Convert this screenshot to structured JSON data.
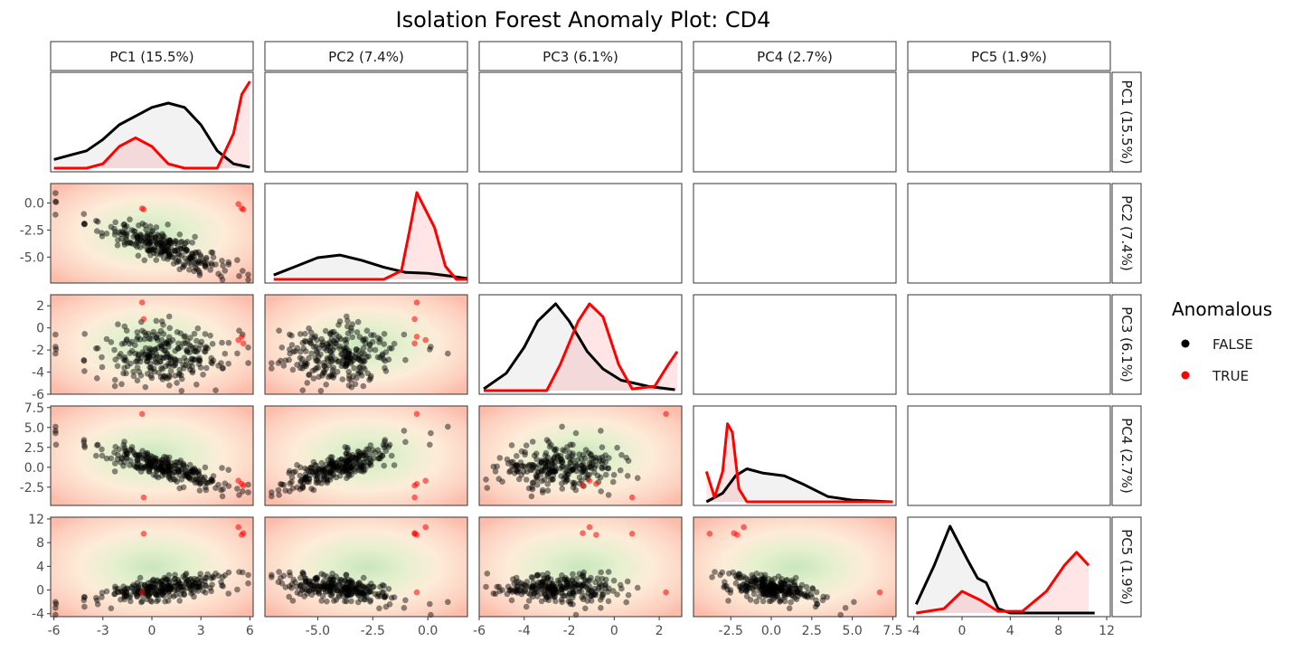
{
  "chart_data": {
    "type": "scatter",
    "title": "Isolation Forest Anomaly Plot: CD4",
    "variables": [
      "PC1 (15.5%)",
      "PC2 (7.4%)",
      "PC3 (6.1%)",
      "PC4 (2.7%)",
      "PC5 (1.9%)"
    ],
    "ranges": [
      [
        -6.2,
        6.2
      ],
      [
        -7.4,
        1.8
      ],
      [
        -6,
        3
      ],
      [
        -4.8,
        7.7
      ],
      [
        -4.5,
        12.3
      ]
    ],
    "ticks": [
      {
        "values": [
          -6,
          -3,
          0,
          3,
          6
        ],
        "labels": [
          "-6",
          "-3",
          "0",
          "3",
          "6"
        ]
      },
      {
        "values": [
          -5,
          -2.5,
          0
        ],
        "labels": [
          "-5.0",
          "-2.5",
          "0.0"
        ]
      },
      {
        "values": [
          -6,
          -4,
          -2,
          0,
          2
        ],
        "labels": [
          "-6",
          "-4",
          "-2",
          "0",
          "2"
        ]
      },
      {
        "values": [
          -2.5,
          0,
          2.5,
          5,
          7.5
        ],
        "labels": [
          "-2.5",
          "0.0",
          "2.5",
          "5.0",
          "7.5"
        ]
      },
      {
        "values": [
          -4,
          0,
          4,
          8,
          12
        ],
        "labels": [
          "-4",
          "0",
          "4",
          "8",
          "12"
        ]
      }
    ],
    "legend": {
      "title": "Anomalous",
      "position": "right",
      "entries": [
        {
          "label": "FALSE",
          "color": "#000000"
        },
        {
          "label": "TRUE",
          "color": "#ff0000"
        }
      ]
    },
    "anomaly_points": [
      [
        5.3,
        -0.1,
        -1.1,
        -1.7,
        10.6
      ],
      [
        5.5,
        -0.5,
        -0.8,
        -2.1,
        9.3
      ],
      [
        5.6,
        -0.6,
        -1.4,
        -2.3,
        9.6
      ],
      [
        -0.5,
        -0.6,
        0.8,
        -3.8,
        9.5
      ],
      [
        -0.6,
        -0.5,
        2.3,
        6.7,
        -0.4
      ]
    ],
    "density_curves": [
      {
        "false": [
          [
            -6,
            0.1
          ],
          [
            -5,
            0.15
          ],
          [
            -4,
            0.2
          ],
          [
            -3,
            0.33
          ],
          [
            -2,
            0.5
          ],
          [
            -1,
            0.6
          ],
          [
            0,
            0.7
          ],
          [
            1,
            0.75
          ],
          [
            2,
            0.7
          ],
          [
            3,
            0.5
          ],
          [
            4,
            0.2
          ],
          [
            5,
            0.05
          ],
          [
            6,
            0.01
          ]
        ],
        "true": [
          [
            -6,
            0.0
          ],
          [
            -4,
            0.0
          ],
          [
            -3,
            0.05
          ],
          [
            -2,
            0.25
          ],
          [
            -1,
            0.35
          ],
          [
            0,
            0.25
          ],
          [
            1,
            0.05
          ],
          [
            2,
            0.0
          ],
          [
            4,
            0.0
          ],
          [
            5,
            0.4
          ],
          [
            5.5,
            0.85
          ],
          [
            6,
            1.0
          ]
        ]
      },
      {
        "false": [
          [
            -7,
            0.05
          ],
          [
            -6,
            0.15
          ],
          [
            -5,
            0.25
          ],
          [
            -4,
            0.28
          ],
          [
            -3,
            0.22
          ],
          [
            -2,
            0.14
          ],
          [
            -1,
            0.08
          ],
          [
            0,
            0.07
          ],
          [
            1,
            0.04
          ],
          [
            1.8,
            0.01
          ]
        ],
        "true": [
          [
            -7,
            0.0
          ],
          [
            -2,
            0.0
          ],
          [
            -1.2,
            0.1
          ],
          [
            -0.8,
            0.6
          ],
          [
            -0.5,
            1.0
          ],
          [
            -0.2,
            0.85
          ],
          [
            0.3,
            0.6
          ],
          [
            0.8,
            0.15
          ],
          [
            1.3,
            0.0
          ],
          [
            1.8,
            0.0
          ]
        ]
      },
      {
        "false": [
          [
            -5.8,
            0.02
          ],
          [
            -4.8,
            0.2
          ],
          [
            -4,
            0.5
          ],
          [
            -3.4,
            0.8
          ],
          [
            -2.6,
            1.0
          ],
          [
            -2,
            0.8
          ],
          [
            -1.2,
            0.45
          ],
          [
            -0.5,
            0.25
          ],
          [
            0.3,
            0.12
          ],
          [
            1.5,
            0.05
          ],
          [
            2.7,
            0.01
          ]
        ],
        "true": [
          [
            -5.8,
            0.0
          ],
          [
            -3,
            0.0
          ],
          [
            -2.4,
            0.3
          ],
          [
            -1.6,
            0.8
          ],
          [
            -1.1,
            1.0
          ],
          [
            -0.5,
            0.85
          ],
          [
            0.2,
            0.3
          ],
          [
            0.8,
            0.02
          ],
          [
            1.8,
            0.05
          ],
          [
            2.4,
            0.3
          ],
          [
            2.8,
            0.45
          ]
        ]
      },
      {
        "false": [
          [
            -4,
            0.0
          ],
          [
            -3,
            0.1
          ],
          [
            -2.2,
            0.3
          ],
          [
            -1.5,
            0.38
          ],
          [
            -0.5,
            0.33
          ],
          [
            0.8,
            0.3
          ],
          [
            2,
            0.2
          ],
          [
            3.5,
            0.06
          ],
          [
            5,
            0.02
          ],
          [
            7.5,
            0.0
          ]
        ],
        "true": [
          [
            -4,
            0.35
          ],
          [
            -3.5,
            0.05
          ],
          [
            -3,
            0.35
          ],
          [
            -2.7,
            0.9
          ],
          [
            -2.4,
            0.8
          ],
          [
            -2,
            0.15
          ],
          [
            -1.5,
            0.0
          ],
          [
            7.5,
            0.0
          ]
        ]
      },
      {
        "false": [
          [
            -3.8,
            0.1
          ],
          [
            -2.3,
            0.55
          ],
          [
            -1,
            1.0
          ],
          [
            0.5,
            0.6
          ],
          [
            1.3,
            0.4
          ],
          [
            2,
            0.35
          ],
          [
            3,
            0.05
          ],
          [
            4,
            0.0
          ],
          [
            11,
            0.0
          ]
        ],
        "true": [
          [
            -3.8,
            0.0
          ],
          [
            -1.5,
            0.05
          ],
          [
            0,
            0.25
          ],
          [
            1.5,
            0.15
          ],
          [
            3,
            0.02
          ],
          [
            5,
            0.02
          ],
          [
            7,
            0.25
          ],
          [
            8.5,
            0.55
          ],
          [
            9.5,
            0.7
          ],
          [
            10.5,
            0.55
          ]
        ]
      }
    ]
  }
}
